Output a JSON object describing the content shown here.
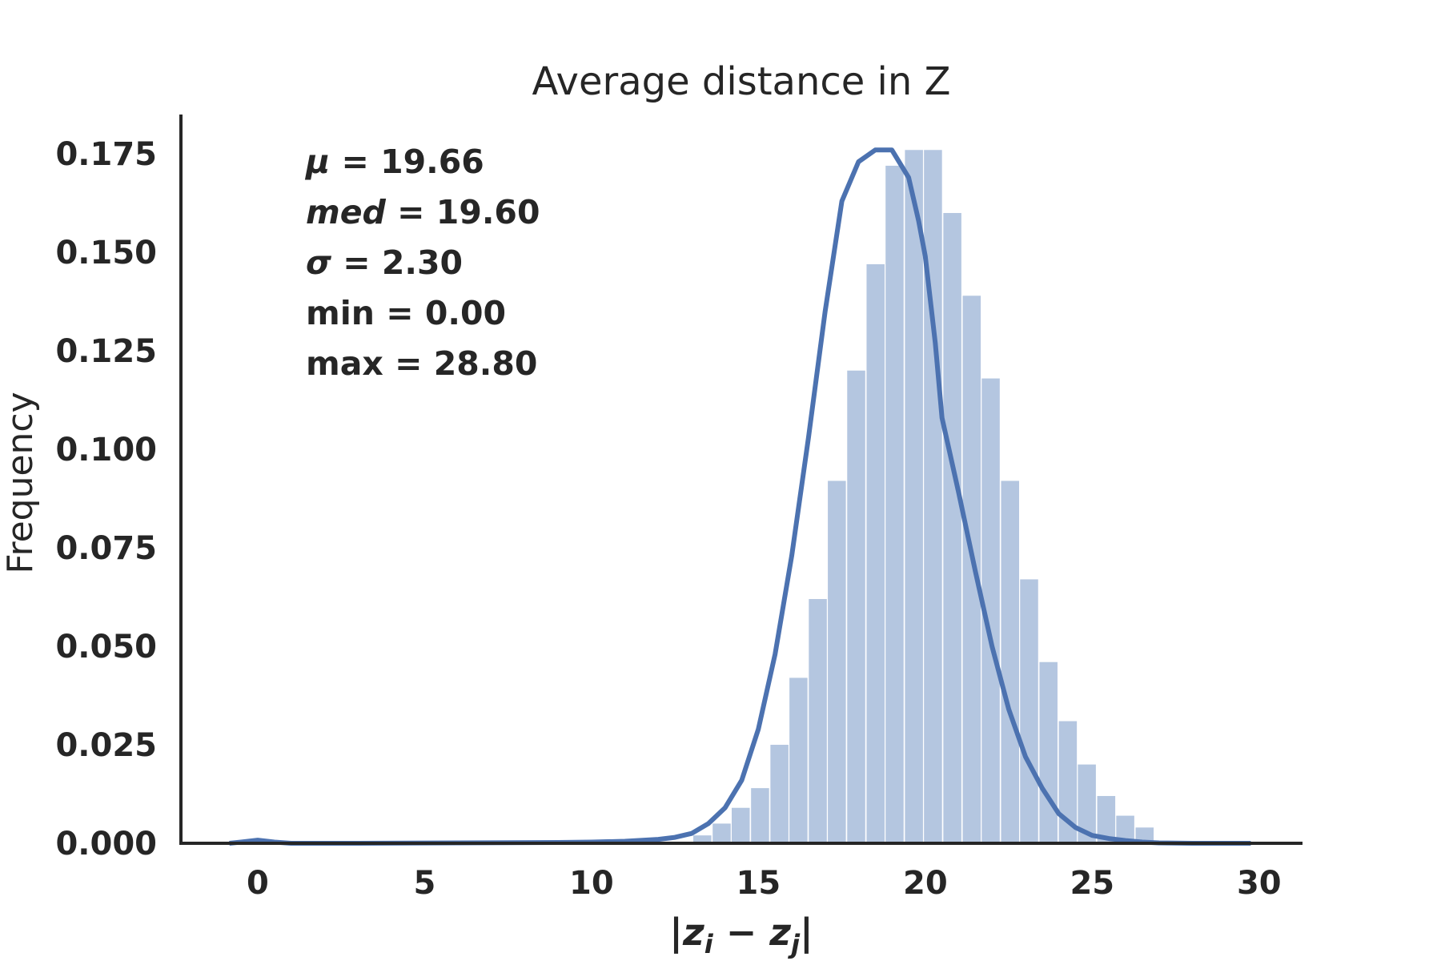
{
  "chart_data": {
    "type": "bar",
    "title": "Average distance in Z",
    "xlabel": "|z_i − z_j|",
    "ylabel": "Frequency",
    "xlim": [
      -2.3,
      31.3
    ],
    "ylim": [
      0,
      0.185
    ],
    "xticks": [
      "0",
      "5",
      "10",
      "15",
      "20",
      "25",
      "30"
    ],
    "yticks": [
      "0.000",
      "0.025",
      "0.050",
      "0.075",
      "0.100",
      "0.125",
      "0.150",
      "0.175"
    ],
    "grid": false,
    "bar_color": "#b4c6e0",
    "line_color": "#4c72b0",
    "bin_width": 0.576,
    "bin_starts": [
      13.05,
      13.63,
      14.2,
      14.78,
      15.36,
      15.93,
      16.51,
      17.08,
      17.66,
      18.24,
      18.81,
      19.39,
      19.96,
      20.54,
      21.12,
      21.69,
      22.27,
      22.84,
      23.42,
      24.0,
      24.57,
      25.15,
      25.72,
      26.3
    ],
    "bin_heights": [
      0.002,
      0.005,
      0.009,
      0.014,
      0.025,
      0.042,
      0.062,
      0.092,
      0.12,
      0.147,
      0.172,
      0.176,
      0.176,
      0.16,
      0.139,
      0.118,
      0.092,
      0.067,
      0.046,
      0.031,
      0.02,
      0.012,
      0.007,
      0.004
    ],
    "kde_x": [
      -0.85,
      -0.5,
      0,
      0.5,
      1.0,
      3,
      6,
      9,
      10,
      11,
      12,
      12.5,
      13,
      13.5,
      14,
      14.5,
      15,
      15.5,
      16,
      16.5,
      17,
      17.5,
      18,
      18.5,
      19,
      19.5,
      19.8,
      20,
      20.3,
      20.5,
      21,
      21.5,
      22,
      22.5,
      23,
      23.5,
      24,
      24.5,
      25,
      25.5,
      26,
      26.5,
      27,
      28,
      29,
      29.75
    ],
    "kde_y": [
      0.0,
      0.0003,
      0.0008,
      0.0003,
      0.0,
      0.0,
      0.0001,
      0.0002,
      0.0003,
      0.0005,
      0.001,
      0.0015,
      0.0025,
      0.005,
      0.009,
      0.016,
      0.029,
      0.048,
      0.073,
      0.103,
      0.135,
      0.163,
      0.173,
      0.176,
      0.176,
      0.169,
      0.158,
      0.149,
      0.127,
      0.108,
      0.089,
      0.069,
      0.05,
      0.034,
      0.022,
      0.014,
      0.0075,
      0.004,
      0.002,
      0.0012,
      0.0007,
      0.0003,
      0.0001,
      0.0,
      0.0,
      0.0
    ],
    "annotations": [
      {
        "name": "μ",
        "value": "= 19.66",
        "italic": true
      },
      {
        "name": "med",
        "value": "= 19.60",
        "italic": true
      },
      {
        "name": "σ",
        "value": "= 2.30",
        "italic": true
      },
      {
        "name": "min",
        "value": "= 0.00",
        "italic": false
      },
      {
        "name": "max",
        "value": "= 28.80",
        "italic": false
      }
    ],
    "xlabel_parts": {
      "open": "|",
      "z1": "z",
      "s1": "i",
      "minus": " − ",
      "z2": "z",
      "s2": "j",
      "close": "|"
    }
  }
}
